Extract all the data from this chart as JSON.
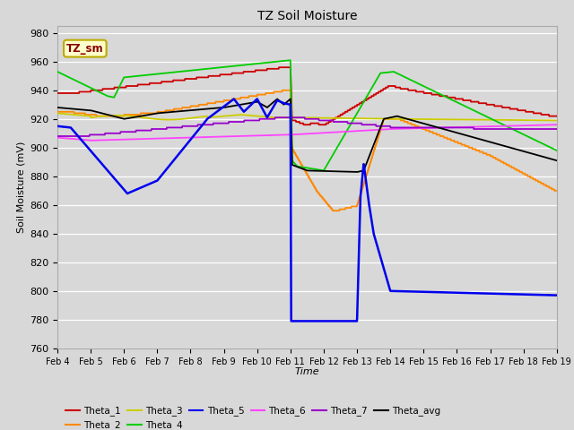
{
  "title": "TZ Soil Moisture",
  "xlabel": "Time",
  "ylabel": "Soil Moisture (mV)",
  "ylim": [
    760,
    985
  ],
  "yticks": [
    760,
    780,
    800,
    820,
    840,
    860,
    880,
    900,
    920,
    940,
    960,
    980
  ],
  "background_color": "#d8d8d8",
  "plot_bg_color": "#d8d8d8",
  "annotation_text": "TZ_sm",
  "annotation_bg": "#ffffcc",
  "annotation_border": "#bbaa00",
  "legend_entries": [
    "Theta_1",
    "Theta_2",
    "Theta_3",
    "Theta_4",
    "Theta_5",
    "Theta_6",
    "Theta_7",
    "Theta_avg"
  ],
  "legend_colors": [
    "#cc0000",
    "#ff8800",
    "#cccc00",
    "#00cc00",
    "#0000ee",
    "#ff44ff",
    "#9900cc",
    "#000000"
  ],
  "x_labels": [
    "Feb 4",
    "Feb 5",
    "Feb 6",
    "Feb 7",
    "Feb 8",
    "Feb 9",
    "Feb 10",
    "Feb 11",
    "Feb 12",
    "Feb 13",
    "Feb 14",
    "Feb 15",
    "Feb 16",
    "Feb 17",
    "Feb 18",
    "Feb 19"
  ]
}
